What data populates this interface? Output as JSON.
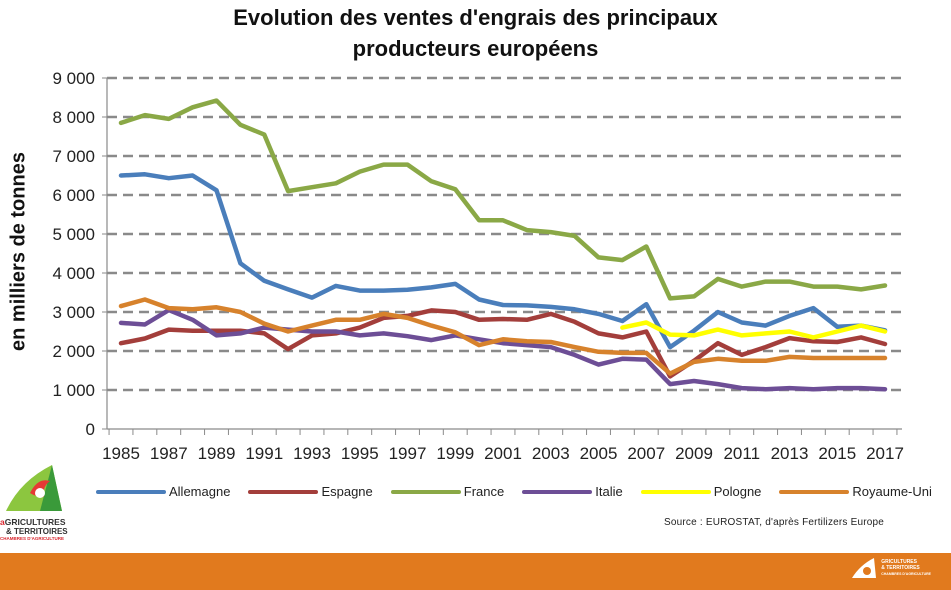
{
  "chart_data": {
    "type": "line",
    "title": "Evolution des ventes d'engrais des principaux producteurs européens",
    "title_lines": [
      "Evolution des ventes d'engrais des principaux",
      "producteurs européens"
    ],
    "xlabel": "",
    "ylabel": "en milliers de tonnes",
    "ylim": [
      0,
      9000
    ],
    "y_ticks": [
      0,
      1000,
      2000,
      3000,
      4000,
      5000,
      6000,
      7000,
      8000,
      9000
    ],
    "y_tick_labels": [
      "0",
      "1 000",
      "2 000",
      "3 000",
      "4 000",
      "5 000",
      "6 000",
      "7 000",
      "8 000",
      "9 000"
    ],
    "x": [
      1985,
      1986,
      1987,
      1988,
      1989,
      1990,
      1991,
      1992,
      1993,
      1994,
      1995,
      1996,
      1997,
      1998,
      1999,
      2000,
      2001,
      2002,
      2003,
      2004,
      2005,
      2006,
      2007,
      2008,
      2009,
      2010,
      2011,
      2012,
      2013,
      2014,
      2015,
      2016,
      2017
    ],
    "x_tick_labels": [
      "1985",
      "1987",
      "1989",
      "1991",
      "1993",
      "1995",
      "1997",
      "1999",
      "2001",
      "2003",
      "2005",
      "2007",
      "2009",
      "2011",
      "2013",
      "2015",
      "2017"
    ],
    "grid": "horizontal-dashed",
    "legend_position": "bottom",
    "series": [
      {
        "name": "Allemagne",
        "color": "#4a7ebb",
        "values": [
          6500,
          6530,
          6430,
          6500,
          6120,
          4250,
          3800,
          3580,
          3370,
          3670,
          3550,
          3550,
          3570,
          3630,
          3720,
          3320,
          3180,
          3170,
          3130,
          3070,
          2950,
          2770,
          3200,
          2100,
          2520,
          3000,
          2730,
          2650,
          2900,
          3100,
          2620,
          2650,
          2530
        ]
      },
      {
        "name": "Espagne",
        "color": "#a33e3b",
        "values": [
          2200,
          2320,
          2550,
          2520,
          2520,
          2520,
          2450,
          2050,
          2400,
          2450,
          2600,
          2850,
          2900,
          3040,
          3000,
          2800,
          2820,
          2800,
          2950,
          2750,
          2450,
          2350,
          2500,
          1350,
          1750,
          2200,
          1900,
          2100,
          2330,
          2250,
          2230,
          2350,
          2180
        ]
      },
      {
        "name": "France",
        "color": "#8aa846",
        "values": [
          7850,
          8050,
          7950,
          8250,
          8420,
          7800,
          7550,
          6100,
          6200,
          6300,
          6600,
          6780,
          6780,
          6350,
          6150,
          5350,
          5350,
          5100,
          5050,
          4950,
          4400,
          4330,
          4680,
          3350,
          3400,
          3850,
          3650,
          3780,
          3780,
          3650,
          3650,
          3580,
          3680
        ]
      },
      {
        "name": "Italie",
        "color": "#6d4e96",
        "values": [
          2720,
          2680,
          3050,
          2800,
          2400,
          2450,
          2600,
          2550,
          2500,
          2500,
          2400,
          2450,
          2380,
          2280,
          2400,
          2300,
          2200,
          2150,
          2100,
          1900,
          1650,
          1800,
          1780,
          1150,
          1230,
          1150,
          1050,
          1020,
          1050,
          1020,
          1050,
          1050,
          1020
        ]
      },
      {
        "name": "Pologne",
        "color": "#ffff00",
        "values": [
          null,
          null,
          null,
          null,
          null,
          null,
          null,
          null,
          null,
          null,
          null,
          null,
          null,
          null,
          null,
          null,
          null,
          null,
          null,
          null,
          null,
          2600,
          2730,
          2420,
          2400,
          2550,
          2400,
          2450,
          2500,
          2350,
          2500,
          2650,
          2500
        ]
      },
      {
        "name": "Royaume-Uni",
        "color": "#d7822c",
        "values": [
          3150,
          3320,
          3100,
          3070,
          3120,
          3000,
          2700,
          2500,
          2650,
          2800,
          2800,
          2950,
          2850,
          2650,
          2480,
          2150,
          2300,
          2250,
          2230,
          2100,
          1980,
          1950,
          1950,
          1420,
          1720,
          1800,
          1750,
          1750,
          1850,
          1820,
          1820,
          1820,
          1820
        ]
      }
    ],
    "source": "Source : EUROSTAT, d'après Fertilizers Europe"
  },
  "branding": {
    "logo_line1_a": "a",
    "logo_line1": "GRICULTURES",
    "logo_line2": "& TERRITOIRES",
    "logo_line3": "CHAMBRES D'AGRICULTURE",
    "footer_color": "#e17a1e"
  }
}
